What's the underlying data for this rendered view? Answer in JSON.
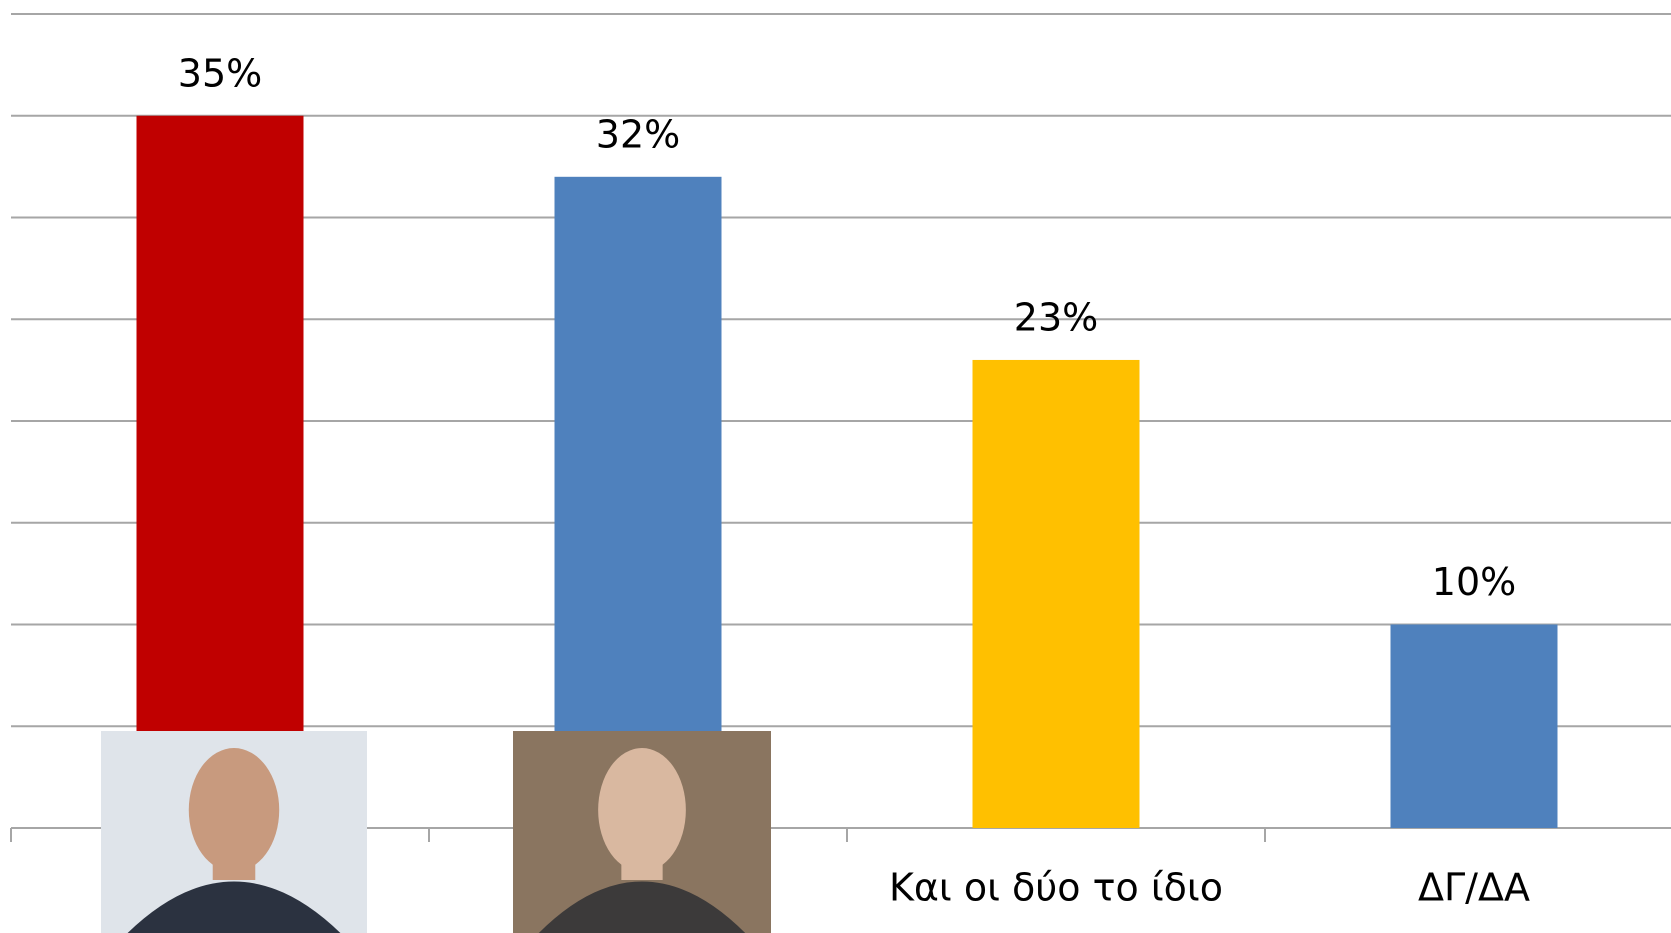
{
  "chart_data": {
    "type": "bar",
    "categories": [
      null,
      null,
      "Και οι δύο το ίδιο",
      "ΔΓ/ΔΑ"
    ],
    "values": [
      35,
      32,
      23,
      10
    ],
    "value_labels": [
      "35%",
      "32%",
      "23%",
      "10%"
    ],
    "colors": [
      "#c00000",
      "#4f81bd",
      "#ffc000",
      "#4f81bd"
    ],
    "ylim": [
      0,
      40
    ],
    "yticks": [
      0,
      5,
      10,
      15,
      20,
      25,
      30,
      35,
      40
    ],
    "grid": true
  }
}
